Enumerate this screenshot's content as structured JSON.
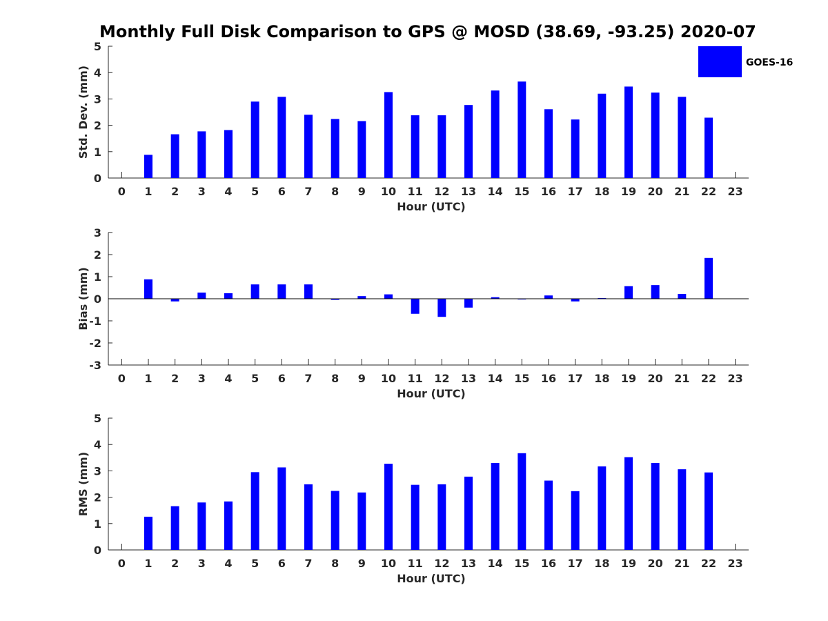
{
  "title": "Monthly Full Disk Comparison to GPS @ MOSD (38.69, -93.25) 2020-07",
  "legend": {
    "label": "GOES-16",
    "color": "#0000ff"
  },
  "chart_data": [
    {
      "type": "bar",
      "title": "Monthly Full Disk Comparison to GPS @ MOSD (38.69, -93.25) 2020-07",
      "xlabel": "Hour (UTC)",
      "ylabel": "Std. Dev. (mm)",
      "ylim": [
        0,
        5
      ],
      "yticks": [
        0,
        1,
        2,
        3,
        4,
        5
      ],
      "categories": [
        0,
        1,
        2,
        3,
        4,
        5,
        6,
        7,
        8,
        9,
        10,
        11,
        12,
        13,
        14,
        15,
        16,
        17,
        18,
        19,
        20,
        21,
        22,
        23
      ],
      "series": [
        {
          "name": "GOES-16",
          "color": "#0000ff",
          "values": [
            null,
            0.88,
            1.66,
            1.77,
            1.82,
            2.9,
            3.08,
            2.4,
            2.24,
            2.16,
            3.26,
            2.38,
            2.38,
            2.77,
            3.32,
            3.66,
            2.61,
            2.22,
            3.2,
            3.47,
            3.24,
            3.08,
            2.29,
            null
          ]
        }
      ]
    },
    {
      "type": "bar",
      "xlabel": "Hour (UTC)",
      "ylabel": "Bias (mm)",
      "ylim": [
        -3,
        3
      ],
      "yticks": [
        -3,
        -2,
        -1,
        0,
        1,
        2,
        3
      ],
      "categories": [
        0,
        1,
        2,
        3,
        4,
        5,
        6,
        7,
        8,
        9,
        10,
        11,
        12,
        13,
        14,
        15,
        16,
        17,
        18,
        19,
        20,
        21,
        22,
        23
      ],
      "series": [
        {
          "name": "GOES-16",
          "color": "#0000ff",
          "values": [
            null,
            0.88,
            -0.12,
            0.28,
            0.25,
            0.65,
            0.65,
            0.65,
            -0.05,
            0.12,
            0.2,
            -0.68,
            -0.82,
            -0.4,
            0.07,
            -0.02,
            0.15,
            -0.12,
            0.03,
            0.57,
            0.62,
            0.22,
            1.85,
            null
          ]
        }
      ]
    },
    {
      "type": "bar",
      "xlabel": "Hour (UTC)",
      "ylabel": "RMS (mm)",
      "ylim": [
        0,
        5
      ],
      "yticks": [
        0,
        1,
        2,
        3,
        4,
        5
      ],
      "categories": [
        0,
        1,
        2,
        3,
        4,
        5,
        6,
        7,
        8,
        9,
        10,
        11,
        12,
        13,
        14,
        15,
        16,
        17,
        18,
        19,
        20,
        21,
        22,
        23
      ],
      "series": [
        {
          "name": "GOES-16",
          "color": "#0000ff",
          "values": [
            null,
            1.26,
            1.66,
            1.8,
            1.84,
            2.95,
            3.13,
            2.49,
            2.24,
            2.18,
            3.27,
            2.47,
            2.49,
            2.78,
            3.3,
            3.67,
            2.63,
            2.23,
            3.17,
            3.52,
            3.3,
            3.06,
            2.94,
            null
          ]
        }
      ]
    }
  ]
}
